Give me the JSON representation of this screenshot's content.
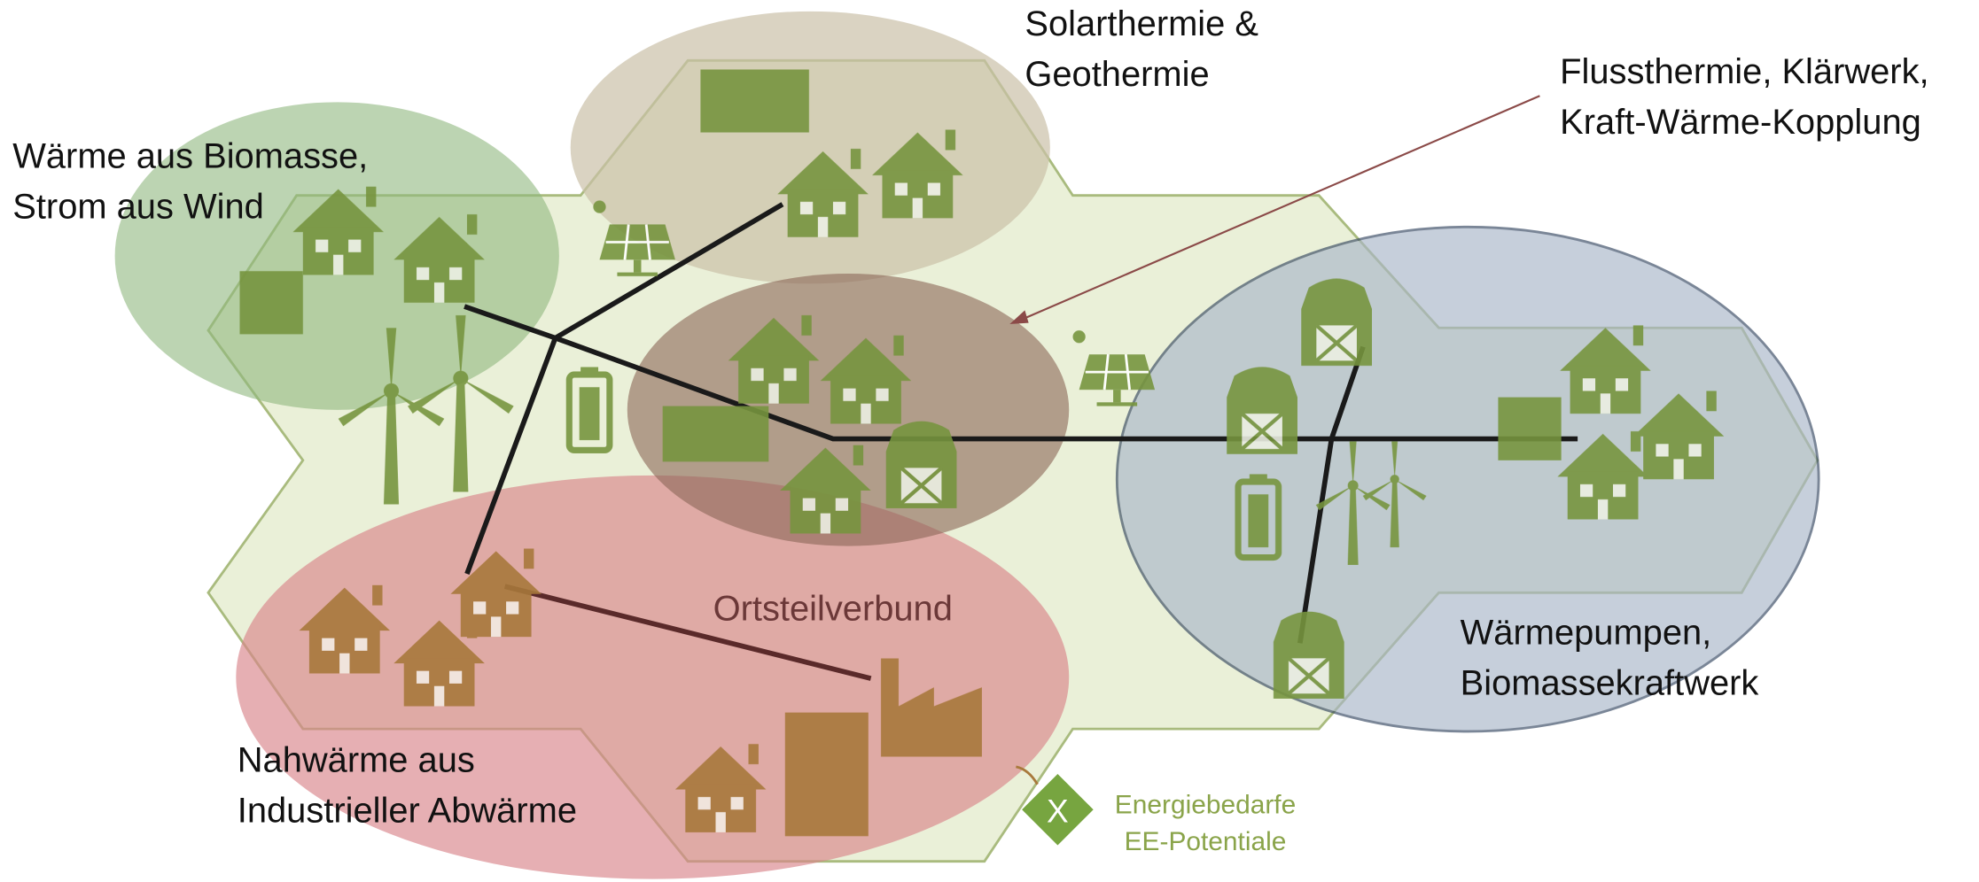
{
  "regions": [
    {
      "label_lines": [
        "Solarthermie &",
        "Geothermie"
      ]
    },
    {
      "label_lines": [
        "Flussthermie, Klärwerk,",
        "Kraft-Wärme-Kopplung"
      ]
    },
    {
      "label_lines": [
        "Wärme aus Biomasse,",
        "Strom aus Wind"
      ]
    },
    {
      "label_lines": [
        "Wärmepumpen,",
        "Biomassekraftwerk"
      ]
    },
    {
      "label_lines": [
        "Nahwärme aus",
        "Industrieller Abwärme"
      ]
    }
  ],
  "center_label": "Ortsteilverbund",
  "legend": {
    "icon": "X",
    "lines": [
      "Energiebedarfe",
      "EE-Potentiale"
    ]
  }
}
